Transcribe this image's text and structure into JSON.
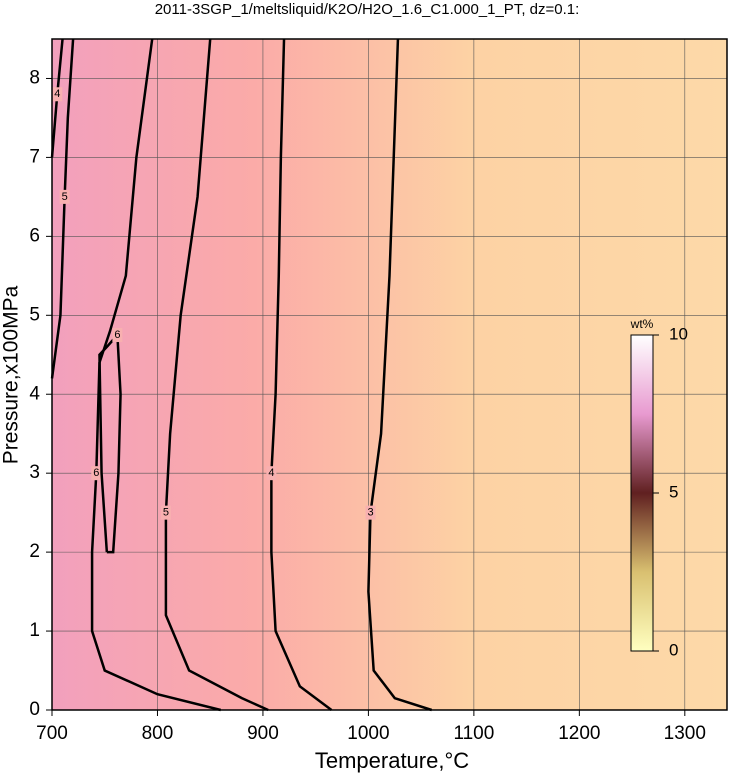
{
  "chart_data": {
    "type": "contour",
    "title": "2011-3SGP_1/meltsliquid/K2O/H2O_1.6_C1.000_1_PT, dz=0.1:",
    "x_label": "Temperature,°C",
    "y_label": "Pressure,x100MPa",
    "xlim": [
      700,
      1340
    ],
    "ylim": [
      0,
      8.5
    ],
    "xticks": [
      700,
      800,
      900,
      1000,
      1100,
      1200,
      1300
    ],
    "yticks": [
      0,
      1,
      2,
      3,
      4,
      5,
      6,
      7,
      8
    ],
    "grid": true,
    "series": [
      {
        "name": "3",
        "color": "#000000",
        "x": [
          1028,
          1024,
          1020,
          1012,
          1002,
          1000,
          1005,
          1025,
          1060
        ],
        "y": [
          8.5,
          7,
          5.5,
          3.5,
          2.5,
          1.5,
          0.5,
          0.15,
          0
        ]
      },
      {
        "name": "4",
        "color": "#000000",
        "x": [
          920,
          917,
          915,
          912,
          908,
          908,
          912,
          935,
          965
        ],
        "y": [
          8.5,
          7,
          5.5,
          4,
          3,
          2,
          1,
          0.3,
          0
        ]
      },
      {
        "name": "5",
        "color": "#000000",
        "x": [
          850,
          838,
          822,
          812,
          808,
          808,
          830,
          880,
          905
        ],
        "y": [
          8.5,
          6.5,
          5,
          3.5,
          2.5,
          1.2,
          0.5,
          0.15,
          0
        ]
      },
      {
        "name": "6",
        "color": "#000000",
        "x": [
          795,
          780,
          770,
          755,
          745,
          742,
          738,
          738,
          750,
          800,
          860
        ],
        "y": [
          8.5,
          7,
          5.5,
          4.8,
          4.4,
          3,
          2,
          1,
          0.5,
          0.2,
          0
        ]
      },
      {
        "name": "6",
        "color": "#000000",
        "x": [
          752,
          747,
          745,
          752,
          762,
          765,
          763,
          758,
          752
        ],
        "y": [
          2.0,
          3,
          4.5,
          4.6,
          4.75,
          4,
          3,
          2,
          2.0
        ]
      },
      {
        "name": "5",
        "color": "#000000",
        "x": [
          720,
          715,
          712,
          708,
          700
        ],
        "y": [
          8.5,
          7.5,
          6.5,
          5,
          4.2
        ]
      },
      {
        "name": "4",
        "color": "#000000",
        "x": [
          710,
          705,
          700
        ],
        "y": [
          8.5,
          7.8,
          7
        ]
      }
    ],
    "colorbar": {
      "label": "wt%",
      "lim": [
        0,
        10
      ],
      "ticks": [
        0,
        5,
        10
      ]
    }
  }
}
